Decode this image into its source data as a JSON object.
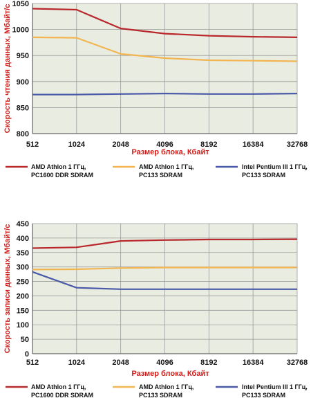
{
  "chart_data": [
    {
      "type": "line",
      "title": "",
      "xlabel": "Размер блока, Кбайт",
      "ylabel": "Скорость чтения данных, Мбайт/с",
      "categories": [
        "512",
        "1024",
        "2048",
        "4096",
        "8192",
        "16384",
        "32768"
      ],
      "yticks": [
        "800",
        "850",
        "900",
        "950",
        "1000",
        "1050"
      ],
      "ylim": [
        800,
        1050
      ],
      "grid": true,
      "legend_position": "bottom",
      "series": [
        {
          "name": "AMD Athlon 1 ГГц, PC1600 DDR SDRAM",
          "label_lines": [
            "AMD Athlon 1 ГГц,",
            "PC1600 DDR SDRAM"
          ],
          "color": "#b8282c",
          "values": [
            1040,
            1038,
            1002,
            992,
            988,
            986,
            985
          ]
        },
        {
          "name": "AMD Athlon 1 ГГц, PC133 SDRAM",
          "label_lines": [
            "AMD Athlon 1 ГГц,",
            "PC133 SDRAM"
          ],
          "color": "#f2b552",
          "values": [
            985,
            984,
            953,
            945,
            941,
            940,
            939
          ]
        },
        {
          "name": "Intel Pentium III 1 ГГц, PC133 SDRAM",
          "label_lines": [
            "Intel Pentium III 1 ГГц,",
            "PC133 SDRAM"
          ],
          "color": "#4a5aa8",
          "values": [
            875,
            875,
            876,
            877,
            876,
            876,
            877
          ]
        }
      ]
    },
    {
      "type": "line",
      "title": "",
      "xlabel": "Размер блока, Кбайт",
      "ylabel": "Скорость записи данных, Мбайт/с",
      "categories": [
        "512",
        "1024",
        "2048",
        "4096",
        "8192",
        "16384",
        "32768"
      ],
      "yticks": [
        "0",
        "50",
        "100",
        "150",
        "200",
        "250",
        "300",
        "350",
        "400",
        "450"
      ],
      "ylim": [
        0,
        450
      ],
      "grid": true,
      "legend_position": "bottom",
      "series": [
        {
          "name": "AMD Athlon 1 ГГц, PC1600 DDR SDRAM",
          "label_lines": [
            "AMD Athlon 1 ГГц,",
            "PC1600 DDR SDRAM"
          ],
          "color": "#b8282c",
          "values": [
            365,
            368,
            390,
            393,
            395,
            395,
            396
          ]
        },
        {
          "name": "AMD Athlon 1 ГГц, PC133 SDRAM",
          "label_lines": [
            "AMD Athlon 1 ГГц,",
            "PC133 SDRAM"
          ],
          "color": "#f2b552",
          "values": [
            291,
            292,
            296,
            298,
            298,
            298,
            298
          ]
        },
        {
          "name": "Intel Pentium III 1 ГГц, PC133 SDRAM",
          "label_lines": [
            "Intel Pentium III 1 ГГц,",
            "PC133 SDRAM"
          ],
          "color": "#4a5aa8",
          "values": [
            283,
            228,
            223,
            223,
            223,
            223,
            223
          ]
        }
      ]
    }
  ]
}
